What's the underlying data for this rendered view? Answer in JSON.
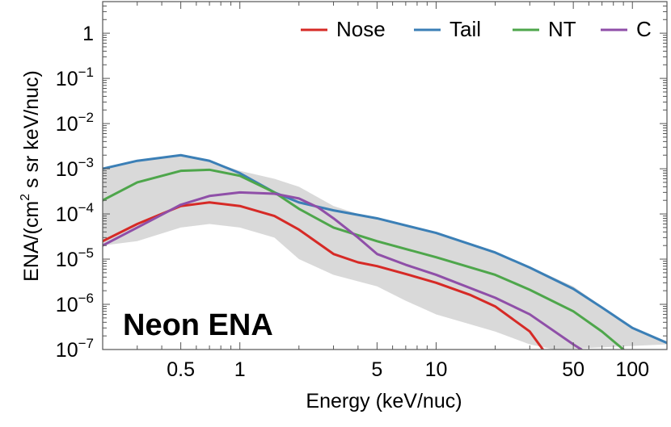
{
  "chart_data": {
    "type": "line",
    "xlabel": "Energy (keV/nuc)",
    "ylabel_parts": {
      "pre": "ENA/(cm",
      "sup": "2",
      "post": " s sr keV/nuc)"
    },
    "annotation": "Neon ENA",
    "x_scale": "log",
    "y_scale": "log",
    "xlim": [
      0.2,
      150
    ],
    "ylim": [
      1e-07,
      5
    ],
    "x_ticks": [
      {
        "value": 0.5,
        "label": "0.5"
      },
      {
        "value": 1,
        "label": "1"
      },
      {
        "value": 5,
        "label": "5"
      },
      {
        "value": 10,
        "label": "10"
      },
      {
        "value": 50,
        "label": "50"
      },
      {
        "value": 100,
        "label": "100"
      }
    ],
    "y_ticks": [
      {
        "value": 1,
        "base": "1",
        "exp": ""
      },
      {
        "value": 0.1,
        "base": "10",
        "exp": "−1"
      },
      {
        "value": 0.01,
        "base": "10",
        "exp": "−2"
      },
      {
        "value": 0.001,
        "base": "10",
        "exp": "−3"
      },
      {
        "value": 0.0001,
        "base": "10",
        "exp": "−4"
      },
      {
        "value": 1e-05,
        "base": "10",
        "exp": "−5"
      },
      {
        "value": 1e-06,
        "base": "10",
        "exp": "−6"
      },
      {
        "value": 1e-07,
        "base": "10",
        "exp": "−7"
      }
    ],
    "legend_position": "top-right",
    "band": {
      "color": "#d9d9d9",
      "upper": [
        [
          0.2,
          0.001
        ],
        [
          0.3,
          0.0015
        ],
        [
          0.5,
          0.002
        ],
        [
          0.7,
          0.0015
        ],
        [
          1,
          0.0009
        ],
        [
          1.5,
          0.0006
        ],
        [
          2,
          0.0004
        ],
        [
          3,
          0.00015
        ],
        [
          4,
          0.0001
        ],
        [
          5,
          8e-05
        ],
        [
          10,
          4e-05
        ],
        [
          20,
          1.5e-05
        ],
        [
          50,
          2.5e-06
        ],
        [
          100,
          3e-07
        ],
        [
          150,
          1.3e-07
        ]
      ],
      "lower": [
        [
          0.2,
          2e-05
        ],
        [
          0.3,
          2.5e-05
        ],
        [
          0.5,
          5e-05
        ],
        [
          0.7,
          6e-05
        ],
        [
          1,
          5e-05
        ],
        [
          1.5,
          3e-05
        ],
        [
          2,
          1e-05
        ],
        [
          3,
          4.5e-06
        ],
        [
          5,
          2.5e-06
        ],
        [
          7,
          1.2e-06
        ],
        [
          10,
          6e-07
        ],
        [
          20,
          2.5e-07
        ],
        [
          30,
          1.3e-07
        ],
        [
          40,
          1e-07
        ]
      ]
    },
    "series": [
      {
        "name": "Nose",
        "color": "#d62a26",
        "points": [
          [
            0.2,
            2.5e-05
          ],
          [
            0.3,
            6e-05
          ],
          [
            0.5,
            0.00015
          ],
          [
            0.7,
            0.00018
          ],
          [
            1,
            0.00015
          ],
          [
            1.5,
            9e-05
          ],
          [
            2,
            4.5e-05
          ],
          [
            3,
            1.3e-05
          ],
          [
            4,
            8.5e-06
          ],
          [
            5,
            7e-06
          ],
          [
            7,
            4.7e-06
          ],
          [
            10,
            3e-06
          ],
          [
            15,
            1.6e-06
          ],
          [
            20,
            9e-07
          ],
          [
            30,
            2.5e-07
          ],
          [
            35,
            1e-07
          ]
        ]
      },
      {
        "name": "Tail",
        "color": "#3b7fb6",
        "points": [
          [
            0.2,
            0.001
          ],
          [
            0.3,
            0.0015
          ],
          [
            0.5,
            0.002
          ],
          [
            0.7,
            0.0015
          ],
          [
            1,
            0.0008
          ],
          [
            1.5,
            0.0003
          ],
          [
            2,
            0.00018
          ],
          [
            3,
            0.00012
          ],
          [
            5,
            8e-05
          ],
          [
            10,
            3.8e-05
          ],
          [
            20,
            1.4e-05
          ],
          [
            30,
            6.5e-06
          ],
          [
            50,
            2.2e-06
          ],
          [
            70,
            8.5e-07
          ],
          [
            100,
            3e-07
          ],
          [
            150,
            1.4e-07
          ]
        ]
      },
      {
        "name": "NT",
        "color": "#4ea64b",
        "points": [
          [
            0.2,
            0.0002
          ],
          [
            0.3,
            0.0005
          ],
          [
            0.5,
            0.0009
          ],
          [
            0.7,
            0.00095
          ],
          [
            1,
            0.0007
          ],
          [
            1.5,
            0.0003
          ],
          [
            2,
            0.00013
          ],
          [
            3,
            5e-05
          ],
          [
            5,
            2.5e-05
          ],
          [
            10,
            1.1e-05
          ],
          [
            20,
            4.5e-06
          ],
          [
            30,
            2.1e-06
          ],
          [
            50,
            7e-07
          ],
          [
            70,
            2.5e-07
          ],
          [
            90,
            1e-07
          ]
        ]
      },
      {
        "name": "C",
        "color": "#8f4fa8",
        "points": [
          [
            0.2,
            2e-05
          ],
          [
            0.3,
            5e-05
          ],
          [
            0.5,
            0.00016
          ],
          [
            0.7,
            0.00025
          ],
          [
            1,
            0.0003
          ],
          [
            1.5,
            0.00028
          ],
          [
            2,
            0.00022
          ],
          [
            2.5,
            0.00014
          ],
          [
            3,
            8e-05
          ],
          [
            4,
            3e-05
          ],
          [
            5,
            1.3e-05
          ],
          [
            7,
            7.5e-06
          ],
          [
            10,
            4.5e-06
          ],
          [
            20,
            1.4e-06
          ],
          [
            30,
            6e-07
          ],
          [
            50,
            1.3e-07
          ],
          [
            55,
            1e-07
          ]
        ]
      }
    ]
  }
}
